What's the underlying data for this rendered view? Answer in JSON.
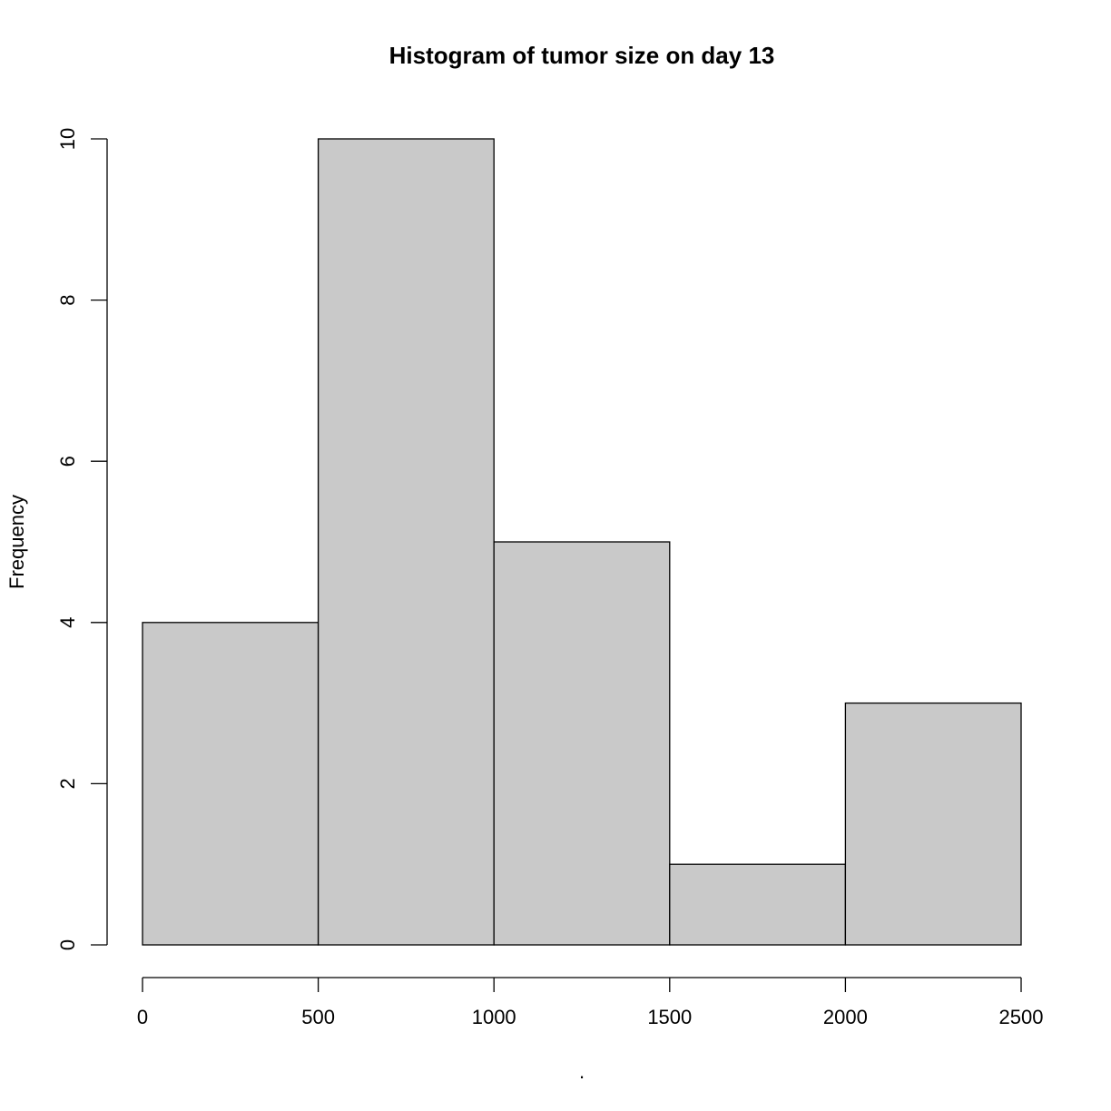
{
  "chart_data": {
    "type": "bar",
    "title": "Histogram of tumor size  on day 13",
    "xlabel": ".",
    "ylabel": "Frequency",
    "bins": [
      {
        "from": 0,
        "to": 500,
        "count": 4
      },
      {
        "from": 500,
        "to": 1000,
        "count": 10
      },
      {
        "from": 1000,
        "to": 1500,
        "count": 5
      },
      {
        "from": 1500,
        "to": 2000,
        "count": 1
      },
      {
        "from": 2000,
        "to": 2500,
        "count": 3
      }
    ],
    "xlim": [
      0,
      2500
    ],
    "ylim": [
      0,
      10
    ],
    "x_ticks": [
      "0",
      "500",
      "1000",
      "1500",
      "2000",
      "2500"
    ],
    "y_ticks": [
      "0",
      "2",
      "4",
      "6",
      "8",
      "10"
    ],
    "grid": false,
    "bar_color": "#c9c9c9",
    "edge_color": "#000000"
  }
}
